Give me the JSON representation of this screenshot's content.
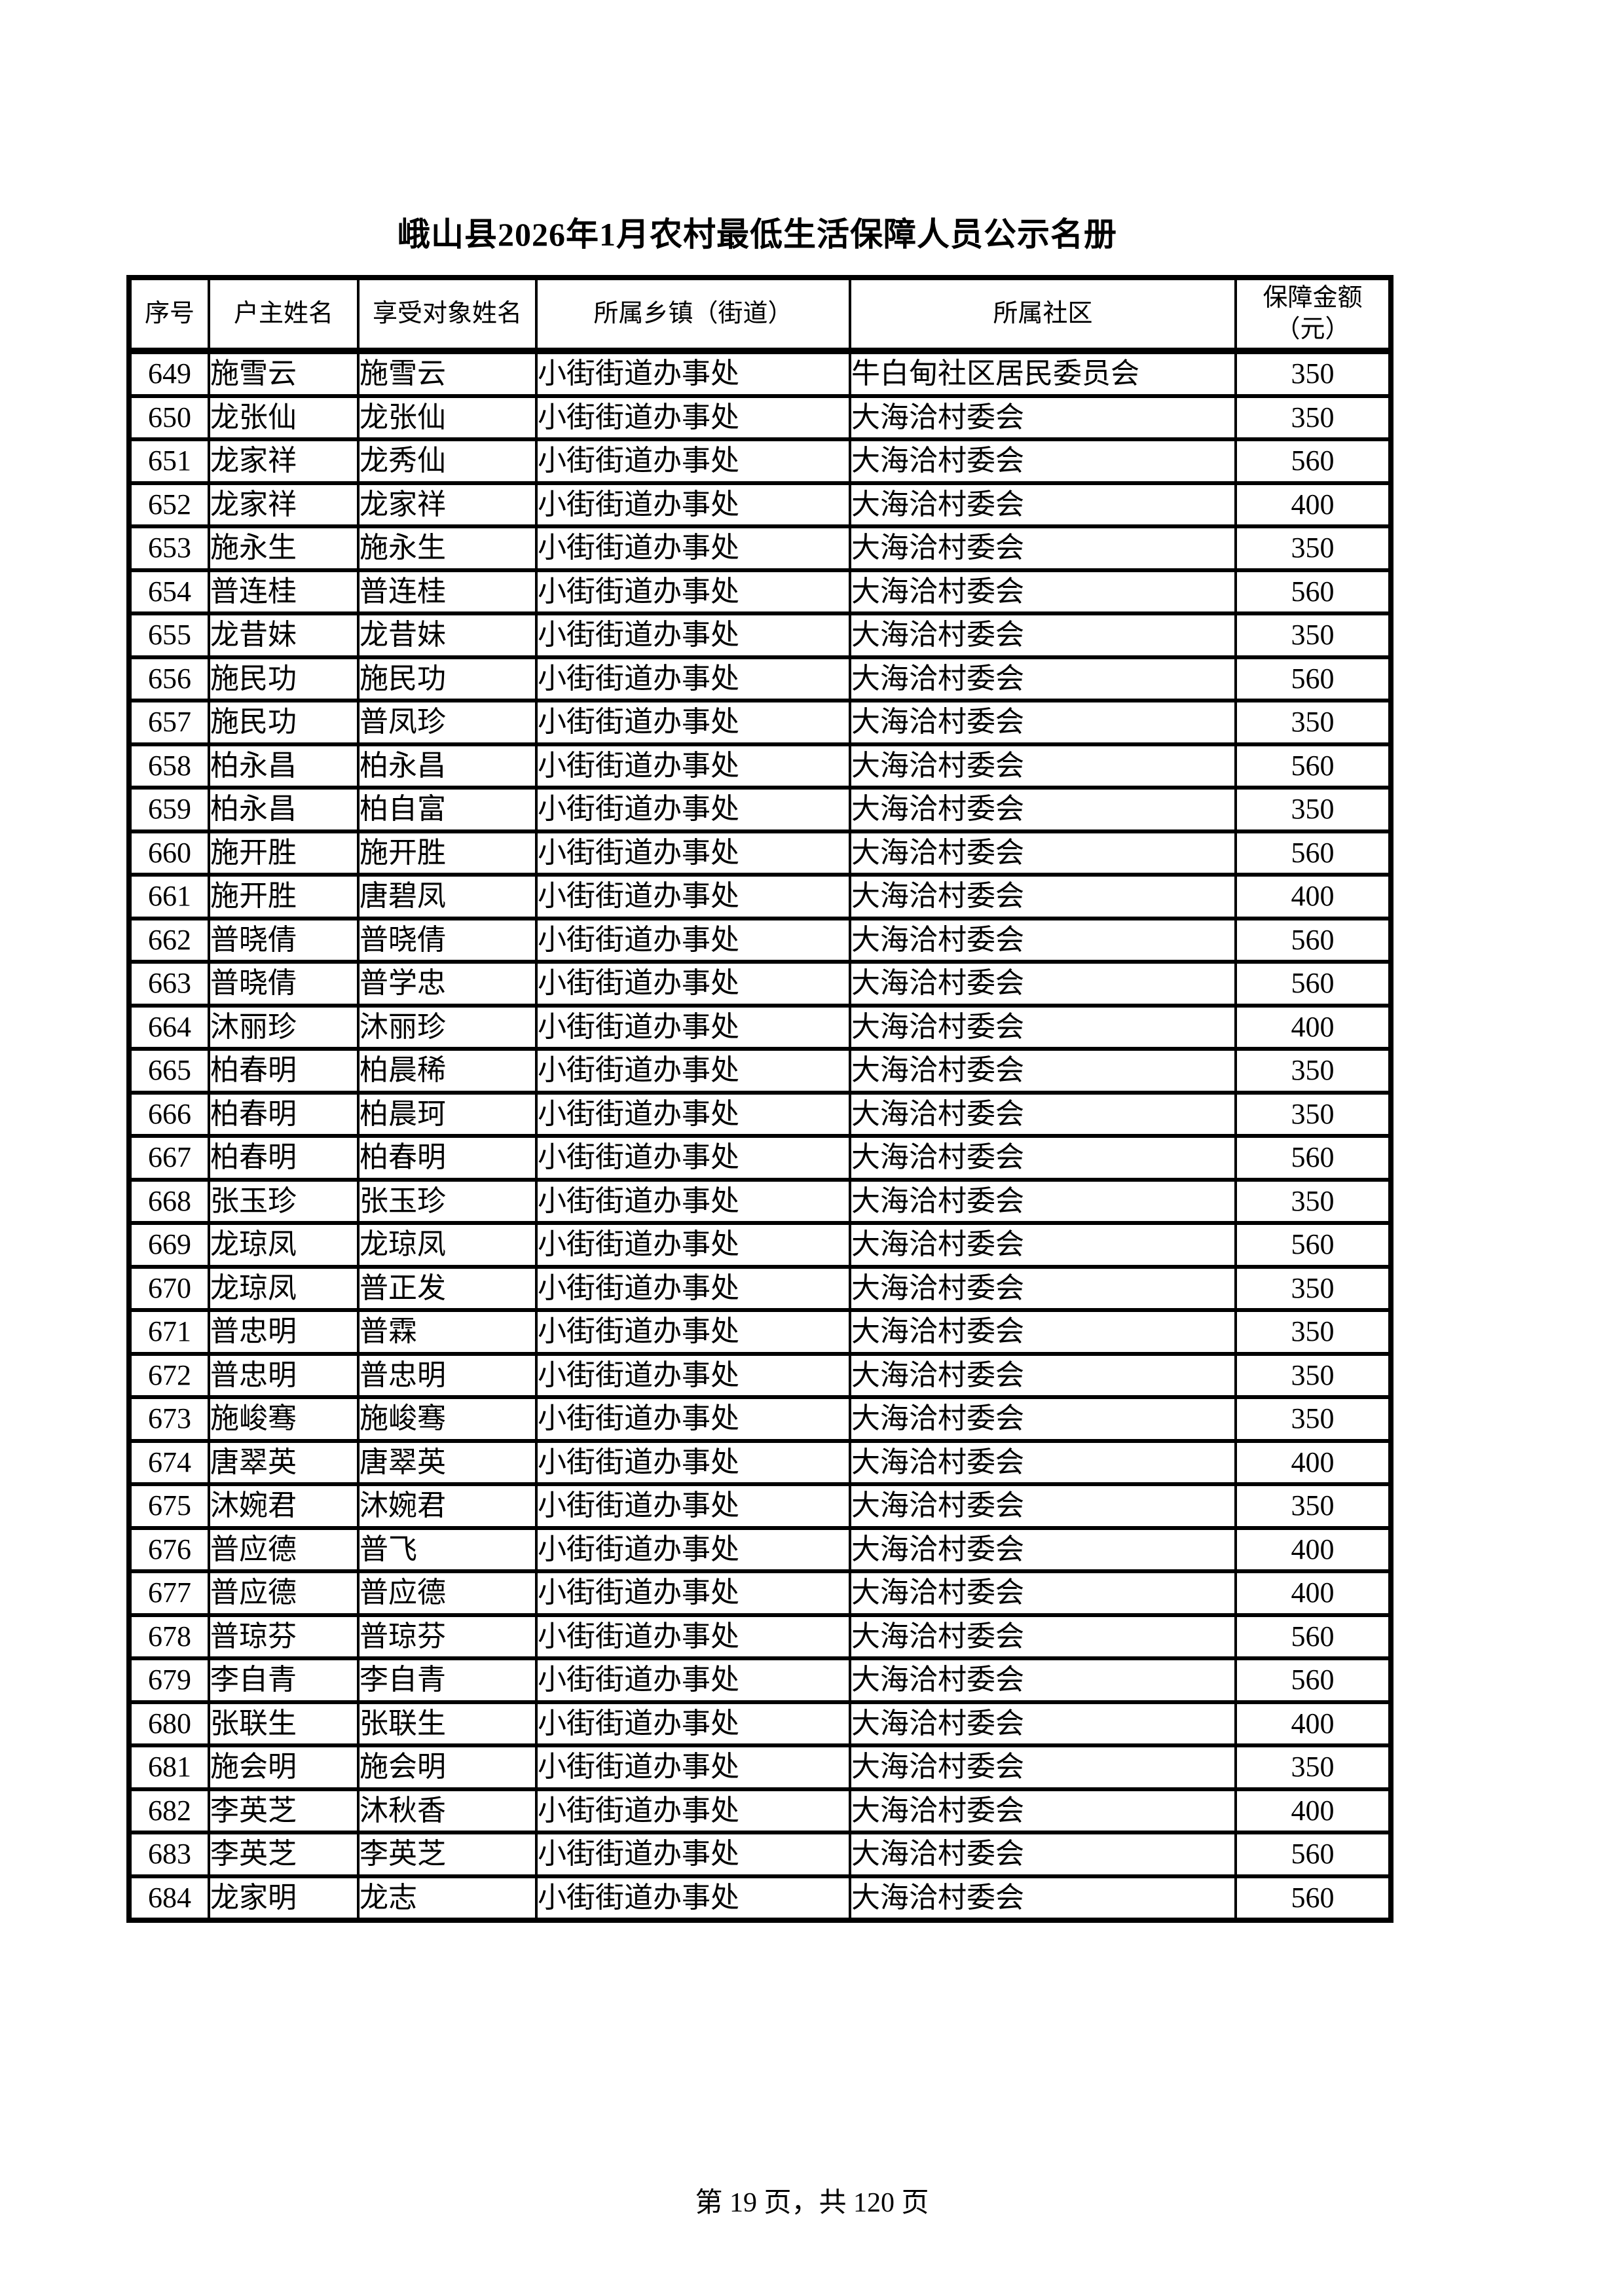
{
  "page": {
    "title": "峨山县2026年1月农村最低生活保障人员公示名册",
    "footer": "第 19 页，共 120 页"
  },
  "table": {
    "columns": [
      "序号",
      "户主姓名",
      "享受对象姓名",
      "所属乡镇（街道）",
      "所属社区",
      "保障金额（元）"
    ],
    "amount_header_line1": "保障金额",
    "amount_header_line2": "（元）",
    "rows": [
      [
        "649",
        "施雪云",
        "施雪云",
        "小街街道办事处",
        "牛白甸社区居民委员会",
        "350"
      ],
      [
        "650",
        "龙张仙",
        "龙张仙",
        "小街街道办事处",
        "大海洽村委会",
        "350"
      ],
      [
        "651",
        "龙家祥",
        "龙秀仙",
        "小街街道办事处",
        "大海洽村委会",
        "560"
      ],
      [
        "652",
        "龙家祥",
        "龙家祥",
        "小街街道办事处",
        "大海洽村委会",
        "400"
      ],
      [
        "653",
        "施永生",
        "施永生",
        "小街街道办事处",
        "大海洽村委会",
        "350"
      ],
      [
        "654",
        "普连桂",
        "普连桂",
        "小街街道办事处",
        "大海洽村委会",
        "560"
      ],
      [
        "655",
        "龙昔妹",
        "龙昔妹",
        "小街街道办事处",
        "大海洽村委会",
        "350"
      ],
      [
        "656",
        "施民功",
        "施民功",
        "小街街道办事处",
        "大海洽村委会",
        "560"
      ],
      [
        "657",
        "施民功",
        "普凤珍",
        "小街街道办事处",
        "大海洽村委会",
        "350"
      ],
      [
        "658",
        "柏永昌",
        "柏永昌",
        "小街街道办事处",
        "大海洽村委会",
        "560"
      ],
      [
        "659",
        "柏永昌",
        "柏自富",
        "小街街道办事处",
        "大海洽村委会",
        "350"
      ],
      [
        "660",
        "施开胜",
        "施开胜",
        "小街街道办事处",
        "大海洽村委会",
        "560"
      ],
      [
        "661",
        "施开胜",
        "唐碧凤",
        "小街街道办事处",
        "大海洽村委会",
        "400"
      ],
      [
        "662",
        "普晓倩",
        "普晓倩",
        "小街街道办事处",
        "大海洽村委会",
        "560"
      ],
      [
        "663",
        "普晓倩",
        "普学忠",
        "小街街道办事处",
        "大海洽村委会",
        "560"
      ],
      [
        "664",
        "沐丽珍",
        "沐丽珍",
        "小街街道办事处",
        "大海洽村委会",
        "400"
      ],
      [
        "665",
        "柏春明",
        "柏晨稀",
        "小街街道办事处",
        "大海洽村委会",
        "350"
      ],
      [
        "666",
        "柏春明",
        "柏晨珂",
        "小街街道办事处",
        "大海洽村委会",
        "350"
      ],
      [
        "667",
        "柏春明",
        "柏春明",
        "小街街道办事处",
        "大海洽村委会",
        "560"
      ],
      [
        "668",
        "张玉珍",
        "张玉珍",
        "小街街道办事处",
        "大海洽村委会",
        "350"
      ],
      [
        "669",
        "龙琼凤",
        "龙琼凤",
        "小街街道办事处",
        "大海洽村委会",
        "560"
      ],
      [
        "670",
        "龙琼凤",
        "普正发",
        "小街街道办事处",
        "大海洽村委会",
        "350"
      ],
      [
        "671",
        "普忠明",
        "普霖",
        "小街街道办事处",
        "大海洽村委会",
        "350"
      ],
      [
        "672",
        "普忠明",
        "普忠明",
        "小街街道办事处",
        "大海洽村委会",
        "350"
      ],
      [
        "673",
        "施峻骞",
        "施峻骞",
        "小街街道办事处",
        "大海洽村委会",
        "350"
      ],
      [
        "674",
        "唐翠英",
        "唐翠英",
        "小街街道办事处",
        "大海洽村委会",
        "400"
      ],
      [
        "675",
        "沐婉君",
        "沐婉君",
        "小街街道办事处",
        "大海洽村委会",
        "350"
      ],
      [
        "676",
        "普应德",
        "普飞",
        "小街街道办事处",
        "大海洽村委会",
        "400"
      ],
      [
        "677",
        "普应德",
        "普应德",
        "小街街道办事处",
        "大海洽村委会",
        "400"
      ],
      [
        "678",
        "普琼芬",
        "普琼芬",
        "小街街道办事处",
        "大海洽村委会",
        "560"
      ],
      [
        "679",
        "李自青",
        "李自青",
        "小街街道办事处",
        "大海洽村委会",
        "560"
      ],
      [
        "680",
        "张联生",
        "张联生",
        "小街街道办事处",
        "大海洽村委会",
        "400"
      ],
      [
        "681",
        "施会明",
        "施会明",
        "小街街道办事处",
        "大海洽村委会",
        "350"
      ],
      [
        "682",
        "李英芝",
        "沐秋香",
        "小街街道办事处",
        "大海洽村委会",
        "400"
      ],
      [
        "683",
        "李英芝",
        "李英芝",
        "小街街道办事处",
        "大海洽村委会",
        "560"
      ],
      [
        "684",
        "龙家明",
        "龙志",
        "小街街道办事处",
        "大海洽村委会",
        "560"
      ]
    ]
  }
}
